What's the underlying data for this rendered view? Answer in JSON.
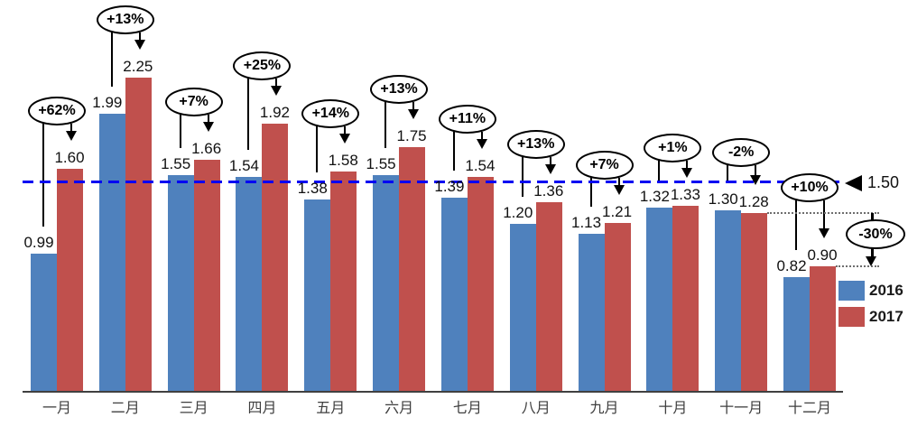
{
  "chart_data": {
    "type": "bar",
    "title": "",
    "categories": [
      "一月",
      "二月",
      "三月",
      "四月",
      "五月",
      "六月",
      "七月",
      "八月",
      "九月",
      "十月",
      "十一月",
      "十二月"
    ],
    "series": [
      {
        "name": "2016",
        "color": "#4F81BD",
        "values": [
          0.99,
          1.99,
          1.55,
          1.54,
          1.38,
          1.55,
          1.39,
          1.2,
          1.13,
          1.32,
          1.3,
          0.82
        ]
      },
      {
        "name": "2017",
        "color": "#C0504D",
        "values": [
          1.6,
          2.25,
          1.66,
          1.92,
          1.58,
          1.75,
          1.54,
          1.36,
          1.21,
          1.33,
          1.28,
          0.9
        ]
      }
    ],
    "value_labels": {
      "s2016": [
        "0.99",
        "1.99",
        "1.55",
        "1.54",
        "1.38",
        "1.55",
        "1.39",
        "1.20",
        "1.13",
        "1.32",
        "1.30",
        "0.82"
      ],
      "s2017": [
        "1.60",
        "2.25",
        "1.66",
        "1.92",
        "1.58",
        "1.75",
        "1.54",
        "1.36",
        "1.21",
        "1.33",
        "1.28",
        "0.90"
      ]
    },
    "change_labels": [
      "+62%",
      "+13%",
      "+7%",
      "+25%",
      "+14%",
      "+13%",
      "+11%",
      "+13%",
      "+7%",
      "+1%",
      "-2%",
      "+10%"
    ],
    "reference_line": {
      "value": 1.5,
      "label": "1.50",
      "color": "#0202F2",
      "style": "dashed"
    },
    "drop_annotation": {
      "label": "-30%",
      "from_value": 1.28,
      "to_value": 0.9
    },
    "legend": {
      "position": "bottom-right",
      "entries": [
        {
          "label": "2016",
          "color": "#4F81BD"
        },
        {
          "label": "2017",
          "color": "#C0504D"
        }
      ]
    },
    "xlabel": "",
    "ylabel": "",
    "ylim": [
      0,
      2.45
    ],
    "grid": false
  }
}
